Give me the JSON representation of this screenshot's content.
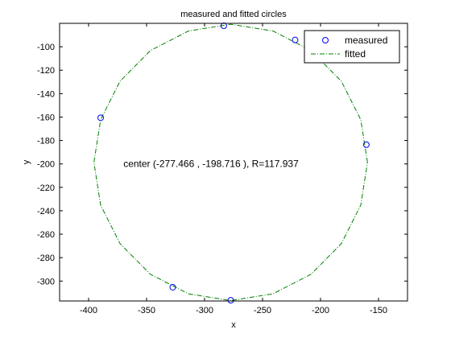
{
  "chart_data": {
    "type": "scatter",
    "title": "measured and fitted circles",
    "xlabel": "x",
    "ylabel": "y",
    "xlim": [
      -425,
      -125
    ],
    "ylim": [
      -317,
      -80
    ],
    "xticks": [
      -400,
      -350,
      -300,
      -250,
      -200,
      -150
    ],
    "yticks": [
      -100,
      -120,
      -140,
      -160,
      -180,
      -200,
      -220,
      -240,
      -260,
      -280,
      -300
    ],
    "grid": false,
    "legend": {
      "placement": "top-right",
      "box": true
    },
    "series": [
      {
        "name": "measured",
        "kind": "markers",
        "marker": "circle",
        "color": "#0000ff",
        "points": [
          [
            -283.4,
            -82.1
          ],
          [
            -221.9,
            -94.2
          ],
          [
            -389.6,
            -160.6
          ],
          [
            -160.5,
            -183.6
          ],
          [
            -327.4,
            -305.3
          ],
          [
            -277.4,
            -316.4
          ]
        ]
      },
      {
        "name": "fitted",
        "kind": "line",
        "linestyle": "dash-dot",
        "color": "#008000",
        "circle": {
          "center": [
            -277.466,
            -198.716
          ],
          "radius": 117.937,
          "segments": 20
        }
      }
    ],
    "annotation": {
      "text": "center (-277.466 , -198.716 ), R=117.937",
      "at": [
        -370,
        -200
      ]
    }
  }
}
